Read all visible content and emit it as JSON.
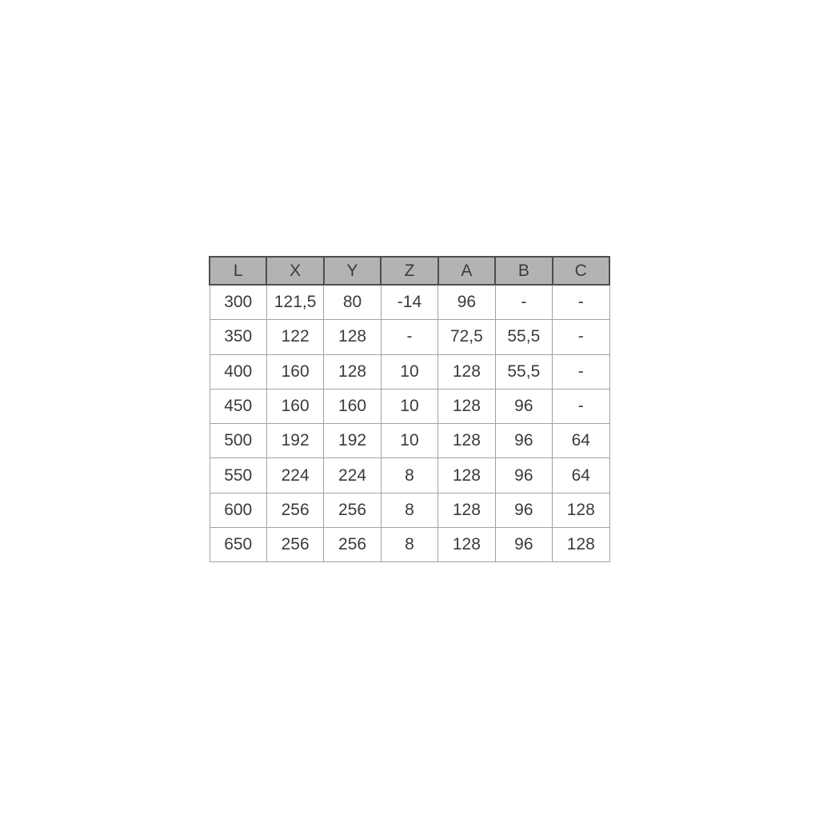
{
  "page": {
    "background_color": "#ffffff"
  },
  "table": {
    "columns": [
      "L",
      "X",
      "Y",
      "Z",
      "A",
      "B",
      "C"
    ],
    "rows": [
      [
        "300",
        "121,5",
        "80",
        "-14",
        "96",
        "-",
        "-"
      ],
      [
        "350",
        "122",
        "128",
        "-",
        "72,5",
        "55,5",
        "-"
      ],
      [
        "400",
        "160",
        "128",
        "10",
        "128",
        "55,5",
        "-"
      ],
      [
        "450",
        "160",
        "160",
        "10",
        "128",
        "96",
        "-"
      ],
      [
        "500",
        "192",
        "192",
        "10",
        "128",
        "96",
        "64"
      ],
      [
        "550",
        "224",
        "224",
        "8",
        "128",
        "96",
        "64"
      ],
      [
        "600",
        "256",
        "256",
        "8",
        "128",
        "96",
        "128"
      ],
      [
        "650",
        "256",
        "256",
        "8",
        "128",
        "96",
        "128"
      ]
    ],
    "colors": {
      "header_background": "#b3b3b3",
      "header_border": "#4d4d4d",
      "cell_border": "#a3a3a3",
      "text": "#3b3b3b"
    }
  },
  "chart_data": {
    "type": "table",
    "title": "",
    "columns": [
      "L",
      "X",
      "Y",
      "Z",
      "A",
      "B",
      "C"
    ],
    "rows": [
      [
        "300",
        "121,5",
        "80",
        "-14",
        "96",
        "-",
        "-"
      ],
      [
        "350",
        "122",
        "128",
        "-",
        "72,5",
        "55,5",
        "-"
      ],
      [
        "400",
        "160",
        "128",
        "10",
        "128",
        "55,5",
        "-"
      ],
      [
        "450",
        "160",
        "160",
        "10",
        "128",
        "96",
        "-"
      ],
      [
        "500",
        "192",
        "192",
        "10",
        "128",
        "96",
        "64"
      ],
      [
        "550",
        "224",
        "224",
        "8",
        "128",
        "96",
        "64"
      ],
      [
        "600",
        "256",
        "256",
        "8",
        "128",
        "96",
        "128"
      ],
      [
        "650",
        "256",
        "256",
        "8",
        "128",
        "96",
        "128"
      ]
    ]
  }
}
